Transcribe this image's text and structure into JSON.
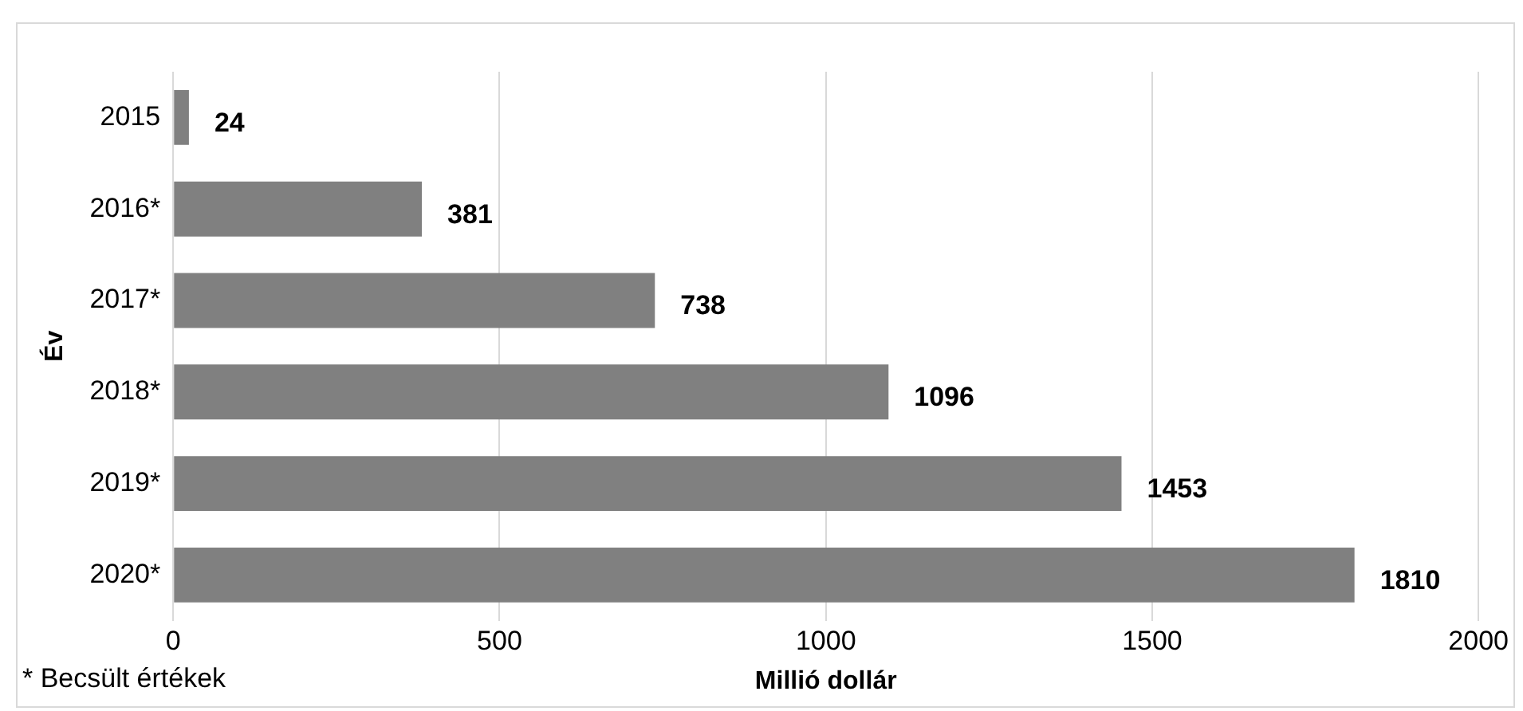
{
  "chart_data": {
    "type": "bar",
    "orientation": "horizontal",
    "xlabel": "Millió dollár",
    "ylabel": "Év",
    "categories": [
      "2015",
      "2016*",
      "2017*",
      "2018*",
      "2019*",
      "2020*"
    ],
    "values": [
      24,
      381,
      738,
      1096,
      1453,
      1810
    ],
    "color": "#808080",
    "xlim": [
      0,
      2000
    ],
    "xticks": [
      0,
      500,
      1000,
      1500,
      2000
    ],
    "grid": "x",
    "data_labels": true,
    "annotations": [
      "* Becsült értékek"
    ]
  }
}
